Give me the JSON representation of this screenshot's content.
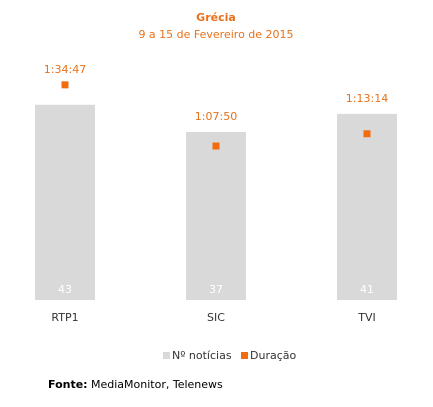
{
  "chart_data": {
    "type": "bar",
    "title": "Grécia",
    "subtitle": "9 a 15 de Fevereiro de 2015",
    "categories": [
      "RTP1",
      "SIC",
      "TVI"
    ],
    "series": [
      {
        "name": "Nº notícias",
        "color": "#d9d9d9",
        "values": [
          43,
          37,
          41
        ]
      },
      {
        "name": "Duração",
        "color": "#f26b0f",
        "axis": "y2",
        "values": [
          5687,
          4070,
          4394
        ],
        "value_labels": [
          "1:34:47",
          "1:07:50",
          "1:13:14"
        ]
      }
    ],
    "ylim": [
      0,
      50
    ],
    "y2lim": [
      0,
      6000
    ],
    "legend": "bottom",
    "source_label": "Fonte:",
    "source": "MediaMonitor, Telenews"
  }
}
